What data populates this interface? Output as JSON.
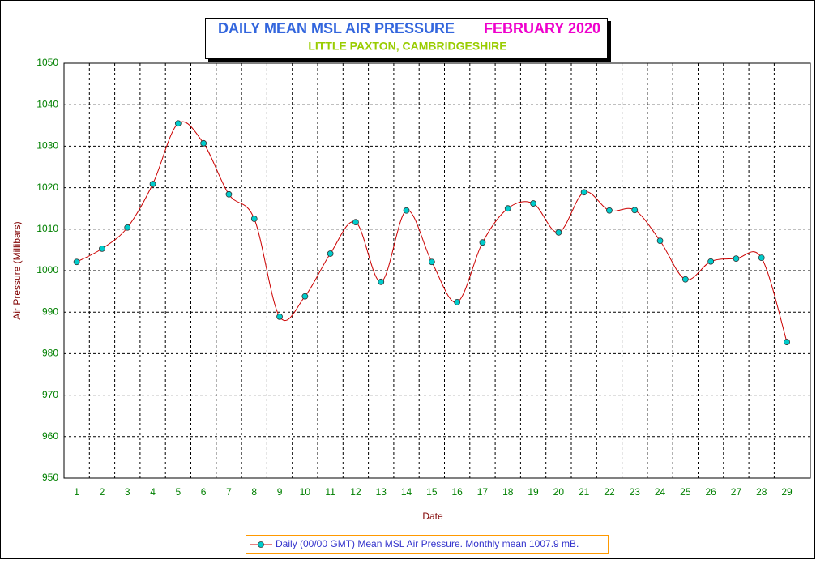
{
  "chart_data": {
    "type": "line",
    "title": "DAILY MEAN MSL AIR PRESSURE",
    "title_period": "FEBRUARY 2020",
    "subtitle": "LITTLE PAXTON, CAMBRIDGESHIRE",
    "x_label": "Date",
    "y_label": "Air Pressure (Millibars)",
    "categories": [
      "1",
      "2",
      "3",
      "4",
      "5",
      "6",
      "7",
      "8",
      "9",
      "10",
      "11",
      "12",
      "13",
      "14",
      "15",
      "16",
      "17",
      "18",
      "19",
      "20",
      "21",
      "22",
      "23",
      "24",
      "25",
      "26",
      "27",
      "28",
      "29"
    ],
    "series": [
      {
        "name": "Daily (00/00 GMT) Mean MSL Air Pressure. Monthly mean 1007.9 mB.",
        "color": "#cc0000",
        "marker_color": "#00cccc",
        "values": [
          1002.1,
          1005.3,
          1010.4,
          1020.9,
          1035.5,
          1030.7,
          1018.4,
          1012.5,
          988.9,
          993.8,
          1004.1,
          1011.7,
          997.3,
          1014.5,
          1002.1,
          992.4,
          1006.8,
          1015.0,
          1016.2,
          1009.2,
          1018.9,
          1014.5,
          1014.6,
          1007.2,
          997.9,
          1002.2,
          1002.9,
          1003.1,
          982.8
        ]
      }
    ],
    "ylim": [
      950,
      1050
    ],
    "yticks": [
      950,
      960,
      970,
      980,
      990,
      1000,
      1010,
      1020,
      1030,
      1040,
      1050
    ],
    "grid": true,
    "legend": "bottom"
  }
}
